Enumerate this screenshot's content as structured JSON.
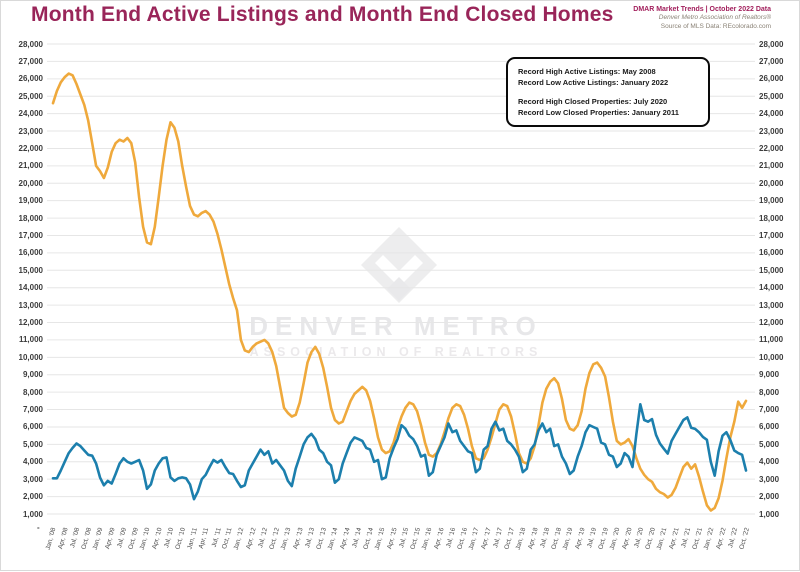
{
  "header": {
    "title": "Month End Active Listings and Month End Closed Homes",
    "meta_line1": "DMAR Market Trends | October 2022 Data",
    "meta_line2": "Denver Metro Association of Realtors®",
    "meta_line3": "Source of MLS Data: REcolorado.com"
  },
  "annotation_box": {
    "lines": [
      "Record High Active Listings: May 2008",
      "Record Low Active Listings: January 2022",
      "Record High Closed Properties: July 2020",
      "Record Low Closed Properties: January 2011"
    ]
  },
  "watermark": {
    "line1": "DENVER METRO",
    "line2": "ASSOCIATION OF REALTORS"
  },
  "colors": {
    "title": "#992559",
    "meta_accent": "#A21F5C",
    "active_line": "#EFA93C",
    "closed_line": "#1C7FAD",
    "grid": "#E6E6E6"
  },
  "chart_data": {
    "type": "line",
    "title": "Month End Active Listings and Month End Closed Homes",
    "frequency": "monthly",
    "x_start": "Jan 2008",
    "x_end": "Oct 2022",
    "ylim": [
      1000,
      28000
    ],
    "y_tick_step": 1000,
    "grid": "horizontal",
    "legend_position": "none",
    "y_tick_labels": [
      "28,000",
      "27,000",
      "26,000",
      "25,000",
      "24,000",
      "23,000",
      "22,000",
      "21,000",
      "20,000",
      "19,000",
      "18,000",
      "17,000",
      "16,000",
      "15,000",
      "14,000",
      "13,000",
      "12,000",
      "11,000",
      "10,000",
      "9,000",
      "8,000",
      "7,000",
      "6,000",
      "5,000",
      "4,000",
      "3,000",
      "2,000",
      "1,000"
    ],
    "zero_tick_label": "-",
    "x_tick_labels": [
      "Jan, '08",
      "Apr, '08",
      "Jul, '08",
      "Oct, '08",
      "Jan, '09",
      "Apr, '09",
      "Jul, '09",
      "Oct, '09",
      "Jan, '10",
      "Apr, '10",
      "Jul, '10",
      "Oct, '10",
      "Jan, '11",
      "Apr, '11",
      "Jul, '11",
      "Oct, '11",
      "Jan, '12",
      "Apr, '12",
      "Jul, '12",
      "Oct, '12",
      "Jan, '13",
      "Apr, '13",
      "Jul, '13",
      "Oct, '13",
      "Jan, '14",
      "Apr, '14",
      "Jul, '14",
      "Oct, '14",
      "Jan, '15",
      "Apr, '15",
      "Jul, '15",
      "Oct, '15",
      "Jan, '16",
      "Apr, '16",
      "Jul, '16",
      "Oct, '16",
      "Jan, '17",
      "Apr, '17",
      "Jul, '17",
      "Oct, '17",
      "Jan, '18",
      "Apr, '18",
      "Jul, '18",
      "Oct, '18",
      "Jan, '19",
      "Apr, '19",
      "Jul, '19",
      "Oct, '19",
      "Jan, '20",
      "Apr, '20",
      "Jul, '20",
      "Oct, '20",
      "Jan, '21",
      "Apr, '21",
      "Jul, '21",
      "Oct, '21",
      "Jan, '22",
      "Apr, '22",
      "Jul, '22",
      "Oct, '22"
    ],
    "series": [
      {
        "name": "Month End Active Listings",
        "color": "#EFA93C",
        "values": [
          24600,
          25300,
          25800,
          26100,
          26300,
          26200,
          25700,
          25100,
          24500,
          23600,
          22300,
          21000,
          20700,
          20300,
          20900,
          21800,
          22300,
          22500,
          22400,
          22600,
          22300,
          21200,
          19200,
          17500,
          16600,
          16500,
          17500,
          19200,
          21000,
          22500,
          23500,
          23200,
          22400,
          21000,
          19800,
          18700,
          18200,
          18100,
          18300,
          18400,
          18200,
          17800,
          17100,
          16200,
          15200,
          14200,
          13400,
          12700,
          11000,
          10400,
          10300,
          10600,
          10800,
          10900,
          11000,
          10800,
          10300,
          9500,
          8300,
          7100,
          6800,
          6600,
          6700,
          7400,
          8500,
          9700,
          10300,
          10600,
          10200,
          9400,
          8300,
          7100,
          6400,
          6200,
          6300,
          6900,
          7500,
          7900,
          8100,
          8300,
          8100,
          7500,
          6500,
          5400,
          4700,
          4500,
          4600,
          5100,
          5900,
          6600,
          7100,
          7400,
          7300,
          6900,
          6100,
          5100,
          4400,
          4300,
          4500,
          5000,
          5700,
          6500,
          7100,
          7300,
          7200,
          6700,
          5900,
          4900,
          4200,
          4100,
          4200,
          4700,
          5400,
          6200,
          7000,
          7300,
          7200,
          6600,
          5600,
          4500,
          4000,
          3900,
          4200,
          4900,
          6100,
          7400,
          8200,
          8600,
          8800,
          8500,
          7600,
          6400,
          5900,
          5800,
          6100,
          6900,
          8200,
          9100,
          9600,
          9700,
          9400,
          8900,
          7700,
          6300,
          5200,
          5000,
          5100,
          5300,
          4900,
          4200,
          3600,
          3250,
          3000,
          2850,
          2450,
          2250,
          2150,
          1950,
          2100,
          2500,
          3100,
          3700,
          3950,
          3600,
          3850,
          3150,
          2300,
          1500,
          1200,
          1350,
          1900,
          2900,
          4200,
          5400,
          6300,
          7450,
          7100,
          7500
        ]
      },
      {
        "name": "Month End Closed Homes",
        "color": "#1C7FAD",
        "values": [
          3050,
          3050,
          3500,
          4000,
          4500,
          4800,
          5050,
          4900,
          4650,
          4400,
          4350,
          3900,
          3100,
          2650,
          2900,
          2750,
          3300,
          3900,
          4200,
          4000,
          3900,
          4000,
          4100,
          3500,
          2450,
          2700,
          3500,
          3900,
          4200,
          4250,
          3100,
          2900,
          3050,
          3100,
          3050,
          2700,
          1850,
          2300,
          3000,
          3250,
          3700,
          4100,
          3950,
          4100,
          3700,
          3350,
          3300,
          2900,
          2550,
          2650,
          3500,
          3900,
          4300,
          4700,
          4400,
          4600,
          3900,
          4100,
          3800,
          3500,
          2900,
          2600,
          3600,
          4300,
          5000,
          5400,
          5600,
          5300,
          4700,
          4500,
          4000,
          3800,
          2800,
          3000,
          3900,
          4500,
          5100,
          5400,
          5300,
          5200,
          4800,
          4700,
          4000,
          4100,
          3000,
          3100,
          4200,
          4800,
          5300,
          6100,
          5900,
          5500,
          5300,
          4900,
          4300,
          4400,
          3200,
          3400,
          4400,
          4900,
          5400,
          6200,
          5700,
          5800,
          5200,
          4900,
          4600,
          4500,
          3400,
          3600,
          4700,
          4900,
          5900,
          6300,
          5800,
          5900,
          5200,
          5000,
          4700,
          4300,
          3400,
          3600,
          4700,
          5000,
          5800,
          6200,
          5700,
          5900,
          4900,
          5000,
          4300,
          3900,
          3300,
          3500,
          4300,
          4900,
          5700,
          6100,
          6000,
          5900,
          5100,
          5000,
          4400,
          4300,
          3700,
          3900,
          4500,
          4300,
          3700,
          5600,
          7300,
          6400,
          6300,
          6450,
          5550,
          5050,
          4750,
          4470,
          5200,
          5600,
          6000,
          6400,
          6550,
          5950,
          5890,
          5700,
          5430,
          5260,
          4000,
          3200,
          4600,
          5500,
          5700,
          5250,
          4650,
          4500,
          4400,
          3500
        ]
      }
    ],
    "annotations": [
      "Record High Active Listings: May 2008",
      "Record Low Active Listings: January 2022",
      "Record High Closed Properties: July 2020",
      "Record Low Closed Properties: January 2011"
    ]
  }
}
